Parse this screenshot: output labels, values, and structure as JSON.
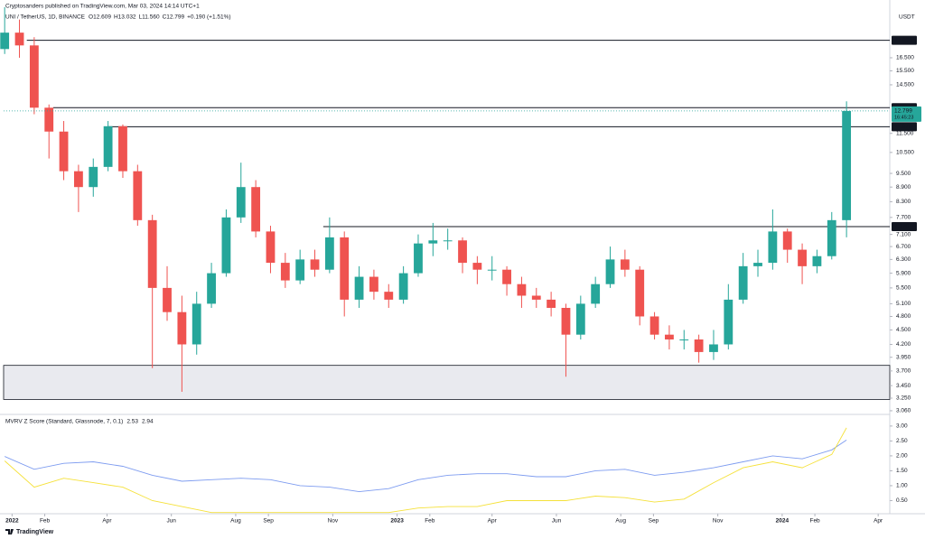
{
  "header": {
    "publisher": "Cryptosanders published on TradingView.com, Mar 03, 2024 14:14 UTC+1",
    "symbol": "UNI / TetherUS, 1D, BINANCE",
    "ohlc": [
      "O12.609",
      "H13.032",
      "L11.560",
      "C12.799",
      "+0.190 (+1.51%)"
    ]
  },
  "footer": {
    "brand": "TradingView"
  },
  "chart_data": [
    {
      "type": "candlestick",
      "currency": "USDT",
      "log_scale": true,
      "grid": false,
      "up_color": "#26a69a",
      "down_color": "#ef5350",
      "xlim": [
        -8,
        832
      ],
      "ylim": [
        3.02,
        21.0
      ],
      "xticks": [
        {
          "value": 0,
          "label": "2022"
        },
        {
          "value": 31,
          "label": "Feb"
        },
        {
          "value": 90,
          "label": "Apr"
        },
        {
          "value": 151,
          "label": "Jun"
        },
        {
          "value": 212,
          "label": "Aug"
        },
        {
          "value": 243,
          "label": "Sep"
        },
        {
          "value": 304,
          "label": "Nov"
        },
        {
          "value": 365,
          "label": "2023"
        },
        {
          "value": 396,
          "label": "Feb"
        },
        {
          "value": 455,
          "label": "Apr"
        },
        {
          "value": 516,
          "label": "Jun"
        },
        {
          "value": 577,
          "label": "Aug"
        },
        {
          "value": 608,
          "label": "Sep"
        },
        {
          "value": 669,
          "label": "Nov"
        },
        {
          "value": 730,
          "label": "2024"
        },
        {
          "value": 761,
          "label": "Feb"
        },
        {
          "value": 821,
          "label": "Apr"
        }
      ],
      "yticks": [
        {
          "value": 3.06,
          "label": "3.060"
        },
        {
          "value": 3.25,
          "label": "3.250"
        },
        {
          "value": 3.45,
          "label": "3.450"
        },
        {
          "value": 3.7,
          "label": "3.700"
        },
        {
          "value": 3.95,
          "label": "3.950"
        },
        {
          "value": 4.2,
          "label": "4.200"
        },
        {
          "value": 4.5,
          "label": "4.500"
        },
        {
          "value": 4.8,
          "label": "4.800"
        },
        {
          "value": 5.1,
          "label": "5.100"
        },
        {
          "value": 5.5,
          "label": "5.500"
        },
        {
          "value": 5.9,
          "label": "5.900"
        },
        {
          "value": 6.3,
          "label": "6.300"
        },
        {
          "value": 6.7,
          "label": "6.700"
        },
        {
          "value": 7.1,
          "label": "7.100"
        },
        {
          "value": 7.7,
          "label": "7.700"
        },
        {
          "value": 8.3,
          "label": "8.300"
        },
        {
          "value": 8.9,
          "label": "8.900"
        },
        {
          "value": 9.5,
          "label": "9.500"
        },
        {
          "value": 10.5,
          "label": "10.500"
        },
        {
          "value": 11.5,
          "label": "11.500"
        },
        {
          "value": 14.5,
          "label": "14.500"
        },
        {
          "value": 15.5,
          "label": "15.500"
        },
        {
          "value": 16.5,
          "label": "16.500"
        }
      ],
      "candles": [
        {
          "x": -7,
          "open": 17.2,
          "high": 21.0,
          "low": 16.8,
          "close": 18.6
        },
        {
          "x": 7,
          "open": 18.6,
          "high": 19.8,
          "low": 16.5,
          "close": 17.5
        },
        {
          "x": 21,
          "open": 17.5,
          "high": 18.2,
          "low": 12.6,
          "close": 13.0
        },
        {
          "x": 35,
          "open": 13.0,
          "high": 13.2,
          "low": 10.2,
          "close": 11.6
        },
        {
          "x": 49,
          "open": 11.6,
          "high": 12.2,
          "low": 9.2,
          "close": 9.6
        },
        {
          "x": 63,
          "open": 9.6,
          "high": 9.9,
          "low": 7.9,
          "close": 8.9
        },
        {
          "x": 77,
          "open": 8.9,
          "high": 10.2,
          "low": 8.5,
          "close": 9.8
        },
        {
          "x": 91,
          "open": 9.8,
          "high": 12.2,
          "low": 9.6,
          "close": 11.9
        },
        {
          "x": 105,
          "open": 11.9,
          "high": 12.0,
          "low": 9.3,
          "close": 9.6
        },
        {
          "x": 119,
          "open": 9.6,
          "high": 9.9,
          "low": 7.4,
          "close": 7.6
        },
        {
          "x": 133,
          "open": 7.6,
          "high": 7.8,
          "low": 3.75,
          "close": 5.5
        },
        {
          "x": 147,
          "open": 5.5,
          "high": 6.1,
          "low": 4.7,
          "close": 4.9
        },
        {
          "x": 161,
          "open": 4.9,
          "high": 5.3,
          "low": 3.35,
          "close": 4.2
        },
        {
          "x": 175,
          "open": 4.2,
          "high": 5.4,
          "low": 4.0,
          "close": 5.1
        },
        {
          "x": 189,
          "open": 5.1,
          "high": 6.2,
          "low": 5.0,
          "close": 5.9
        },
        {
          "x": 203,
          "open": 5.9,
          "high": 8.0,
          "low": 5.8,
          "close": 7.7
        },
        {
          "x": 217,
          "open": 7.7,
          "high": 10.0,
          "low": 7.5,
          "close": 8.9
        },
        {
          "x": 231,
          "open": 8.9,
          "high": 9.2,
          "low": 7.0,
          "close": 7.2
        },
        {
          "x": 245,
          "open": 7.2,
          "high": 7.4,
          "low": 5.9,
          "close": 6.2
        },
        {
          "x": 259,
          "open": 6.2,
          "high": 6.5,
          "low": 5.5,
          "close": 5.7
        },
        {
          "x": 273,
          "open": 5.7,
          "high": 6.6,
          "low": 5.6,
          "close": 6.3
        },
        {
          "x": 287,
          "open": 6.3,
          "high": 6.6,
          "low": 5.8,
          "close": 6.0
        },
        {
          "x": 301,
          "open": 6.0,
          "high": 7.7,
          "low": 5.9,
          "close": 7.0
        },
        {
          "x": 315,
          "open": 7.0,
          "high": 7.2,
          "low": 4.8,
          "close": 5.2
        },
        {
          "x": 329,
          "open": 5.2,
          "high": 6.1,
          "low": 5.0,
          "close": 5.8
        },
        {
          "x": 343,
          "open": 5.8,
          "high": 6.0,
          "low": 5.2,
          "close": 5.4
        },
        {
          "x": 357,
          "open": 5.4,
          "high": 5.6,
          "low": 5.0,
          "close": 5.2
        },
        {
          "x": 371,
          "open": 5.2,
          "high": 6.1,
          "low": 5.1,
          "close": 5.9
        },
        {
          "x": 385,
          "open": 5.9,
          "high": 7.1,
          "low": 5.8,
          "close": 6.8
        },
        {
          "x": 399,
          "open": 6.8,
          "high": 7.5,
          "low": 6.4,
          "close": 6.9
        },
        {
          "x": 413,
          "open": 6.9,
          "high": 7.3,
          "low": 6.6,
          "close": 6.9
        },
        {
          "x": 427,
          "open": 6.9,
          "high": 7.0,
          "low": 5.9,
          "close": 6.2
        },
        {
          "x": 441,
          "open": 6.2,
          "high": 6.4,
          "low": 5.6,
          "close": 6.0
        },
        {
          "x": 455,
          "open": 6.0,
          "high": 6.4,
          "low": 5.7,
          "close": 6.0
        },
        {
          "x": 469,
          "open": 6.0,
          "high": 6.1,
          "low": 5.3,
          "close": 5.6
        },
        {
          "x": 483,
          "open": 5.6,
          "high": 5.8,
          "low": 5.0,
          "close": 5.3
        },
        {
          "x": 497,
          "open": 5.3,
          "high": 5.5,
          "low": 5.0,
          "close": 5.2
        },
        {
          "x": 511,
          "open": 5.2,
          "high": 5.4,
          "low": 4.8,
          "close": 5.0
        },
        {
          "x": 525,
          "open": 5.0,
          "high": 5.1,
          "low": 3.6,
          "close": 4.4
        },
        {
          "x": 539,
          "open": 4.4,
          "high": 5.3,
          "low": 4.3,
          "close": 5.1
        },
        {
          "x": 553,
          "open": 5.1,
          "high": 5.8,
          "low": 5.0,
          "close": 5.6
        },
        {
          "x": 567,
          "open": 5.6,
          "high": 6.7,
          "low": 5.5,
          "close": 6.3
        },
        {
          "x": 581,
          "open": 6.3,
          "high": 6.6,
          "low": 5.8,
          "close": 6.0
        },
        {
          "x": 595,
          "open": 6.0,
          "high": 6.1,
          "low": 4.6,
          "close": 4.8
        },
        {
          "x": 609,
          "open": 4.8,
          "high": 4.9,
          "low": 4.3,
          "close": 4.4
        },
        {
          "x": 623,
          "open": 4.4,
          "high": 4.6,
          "low": 4.1,
          "close": 4.3
        },
        {
          "x": 637,
          "open": 4.3,
          "high": 4.5,
          "low": 4.1,
          "close": 4.3
        },
        {
          "x": 651,
          "open": 4.3,
          "high": 4.4,
          "low": 3.85,
          "close": 4.05
        },
        {
          "x": 665,
          "open": 4.05,
          "high": 4.5,
          "low": 3.9,
          "close": 4.2
        },
        {
          "x": 679,
          "open": 4.2,
          "high": 5.6,
          "low": 4.1,
          "close": 5.2
        },
        {
          "x": 693,
          "open": 5.2,
          "high": 6.5,
          "low": 5.1,
          "close": 6.1
        },
        {
          "x": 707,
          "open": 6.1,
          "high": 6.6,
          "low": 5.8,
          "close": 6.2
        },
        {
          "x": 721,
          "open": 6.2,
          "high": 8.0,
          "low": 6.0,
          "close": 7.2
        },
        {
          "x": 735,
          "open": 7.2,
          "high": 7.3,
          "low": 6.2,
          "close": 6.6
        },
        {
          "x": 749,
          "open": 6.6,
          "high": 6.8,
          "low": 5.6,
          "close": 6.1
        },
        {
          "x": 763,
          "open": 6.1,
          "high": 6.6,
          "low": 5.9,
          "close": 6.4
        },
        {
          "x": 777,
          "open": 6.4,
          "high": 7.9,
          "low": 6.3,
          "close": 7.6
        },
        {
          "x": 791,
          "open": 7.6,
          "high": 13.4,
          "low": 7.0,
          "close": 12.8
        }
      ],
      "levels": [
        {
          "value": 17.93,
          "label": "17.930",
          "from": 14
        },
        {
          "value": 13.0,
          "label": "13.000",
          "from": 39
        },
        {
          "value": 11.87,
          "label": "11.870",
          "from": 91
        },
        {
          "value": 7.37,
          "label": "7.370",
          "from": 295
        }
      ],
      "zone": {
        "low": 3.23,
        "high": 3.8,
        "from": -8,
        "color": "#e9eaef"
      },
      "last_price": 12.799,
      "countdown": "16:45:23",
      "last_color": "#26a69a"
    },
    {
      "type": "line",
      "title": "MVRV Z Score (Standard, Glassnode, 7, 0.1)",
      "xlim": [
        -8,
        832
      ],
      "ylim": [
        0.09,
        3.36
      ],
      "yticks": [
        {
          "value": 0.5,
          "label": "0.50"
        },
        {
          "value": 1.0,
          "label": "1.00"
        },
        {
          "value": 1.5,
          "label": "1.50"
        },
        {
          "value": 2.0,
          "label": "2.00"
        },
        {
          "value": 2.5,
          "label": "2.50"
        },
        {
          "value": 3.0,
          "label": "3.00"
        }
      ],
      "x": [
        -7,
        21,
        49,
        77,
        105,
        133,
        161,
        189,
        217,
        245,
        273,
        301,
        329,
        357,
        385,
        413,
        441,
        469,
        497,
        525,
        553,
        581,
        609,
        637,
        665,
        693,
        721,
        749,
        777,
        791
      ],
      "series": [
        {
          "color": "#7e9cf0",
          "values": [
            1.98,
            1.55,
            1.75,
            1.8,
            1.65,
            1.35,
            1.15,
            1.2,
            1.25,
            1.2,
            1.0,
            0.95,
            0.8,
            0.9,
            1.2,
            1.35,
            1.4,
            1.4,
            1.3,
            1.3,
            1.5,
            1.55,
            1.35,
            1.45,
            1.6,
            1.8,
            2.0,
            1.9,
            2.2,
            2.53
          ]
        },
        {
          "color": "#f5e13a",
          "values": [
            1.83,
            0.95,
            1.25,
            1.1,
            0.95,
            0.5,
            0.3,
            0.1,
            0.1,
            0.1,
            0.1,
            0.1,
            0.1,
            0.1,
            0.25,
            0.3,
            0.3,
            0.5,
            0.5,
            0.5,
            0.65,
            0.6,
            0.45,
            0.55,
            1.1,
            1.6,
            1.8,
            1.6,
            2.05,
            2.94
          ]
        }
      ]
    }
  ]
}
